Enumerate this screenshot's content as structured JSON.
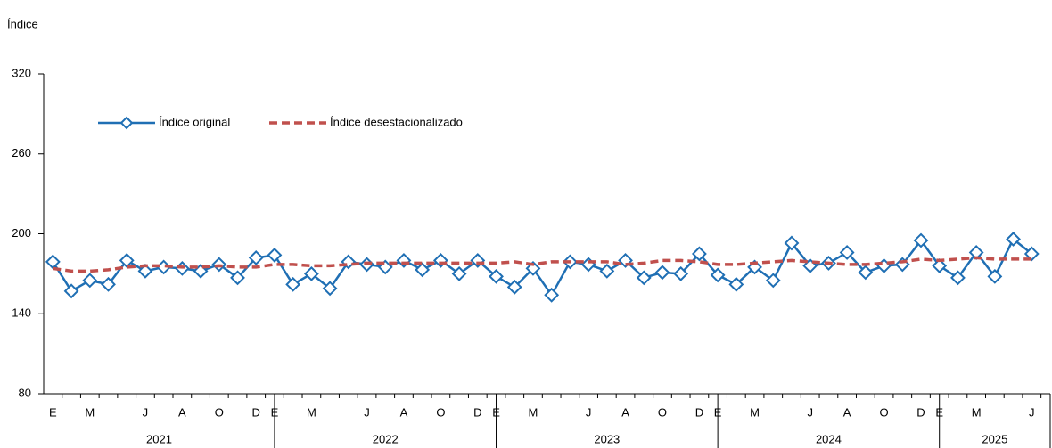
{
  "chart_data": {
    "type": "line",
    "y_axis_label": "Índice",
    "categories": [
      "E",
      null,
      "M",
      null,
      null,
      "J",
      null,
      "A",
      null,
      "O",
      null,
      "D",
      "E",
      null,
      "M",
      null,
      null,
      "J",
      null,
      "A",
      null,
      "O",
      null,
      "D",
      "E",
      null,
      "M",
      null,
      null,
      "J",
      null,
      "A",
      null,
      "O",
      null,
      "D",
      "E",
      null,
      "M",
      null,
      null,
      "J",
      null,
      "A",
      null,
      "O",
      null,
      "D",
      "E",
      null,
      "M",
      null,
      null,
      "J"
    ],
    "years": [
      "2021",
      "2022",
      "2023",
      "2024",
      "2025"
    ],
    "series": [
      {
        "name": "Índice original",
        "color": "#1f6fb4",
        "marker": "diamond",
        "dash": false,
        "values": [
          179,
          157,
          165,
          162,
          180,
          172,
          175,
          174,
          172,
          177,
          167,
          182,
          184,
          162,
          170,
          159,
          179,
          177,
          175,
          180,
          173,
          180,
          170,
          180,
          168,
          160,
          174,
          154,
          179,
          177,
          172,
          180,
          167,
          171,
          170,
          185,
          169,
          162,
          175,
          165,
          193,
          176,
          178,
          186,
          171,
          176,
          177,
          195,
          176,
          167,
          186,
          168,
          196,
          185
        ]
      },
      {
        "name": "Índice desestacionalizado",
        "color": "#c0504d",
        "marker": null,
        "dash": true,
        "values": [
          174,
          172,
          172,
          173,
          175,
          176,
          176,
          175,
          175,
          176,
          175,
          175,
          177,
          177,
          176,
          176,
          177,
          178,
          178,
          178,
          178,
          178,
          178,
          178,
          178,
          179,
          177,
          179,
          179,
          179,
          179,
          177,
          178,
          180,
          180,
          179,
          177,
          177,
          178,
          179,
          180,
          179,
          178,
          177,
          177,
          178,
          179,
          181,
          180,
          181,
          182,
          181,
          181,
          181
        ]
      }
    ],
    "ylim": [
      80,
      320
    ],
    "yticks": [
      80,
      140,
      200,
      260,
      320
    ],
    "grid": false
  }
}
